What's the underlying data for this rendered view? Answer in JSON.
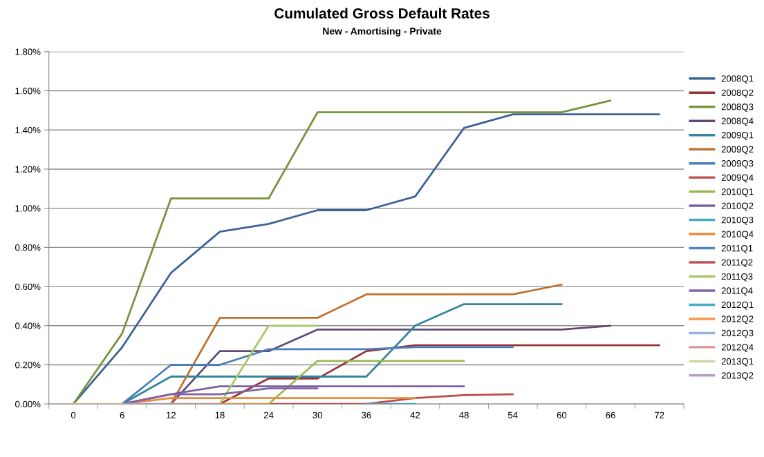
{
  "chart_data": {
    "type": "line",
    "title": "Cumulated Gross Default Rates",
    "subtitle": "New - Amortising - Private",
    "categories": [
      "0",
      "6",
      "12",
      "18",
      "24",
      "30",
      "36",
      "42",
      "48",
      "54",
      "60",
      "66",
      "72"
    ],
    "ylim": [
      0,
      1.8
    ],
    "yticks": [
      {
        "value": 0,
        "label": "0.00%"
      },
      {
        "value": 0.2,
        "label": "0.20%"
      },
      {
        "value": 0.4,
        "label": "0.40%"
      },
      {
        "value": 0.6,
        "label": "0.60%"
      },
      {
        "value": 0.8,
        "label": "0.80%"
      },
      {
        "value": 1.0,
        "label": "1.00%"
      },
      {
        "value": 1.2,
        "label": "1.20%"
      },
      {
        "value": 1.4,
        "label": "1.40%"
      },
      {
        "value": 1.6,
        "label": "1.60%"
      },
      {
        "value": 1.8,
        "label": "1.80%"
      }
    ],
    "grid": "y",
    "legend": "right",
    "series": [
      {
        "name": "2008Q1",
        "color": "#3b6397",
        "values": [
          0,
          0.29,
          0.67,
          0.88,
          0.92,
          0.99,
          0.99,
          1.06,
          1.41,
          1.48,
          1.48,
          1.48,
          1.48
        ]
      },
      {
        "name": "2008Q2",
        "color": "#953735",
        "values": [
          null,
          null,
          null,
          0,
          0.13,
          0.13,
          0.27,
          0.3,
          0.3,
          0.3,
          0.3,
          0.3,
          0.3
        ]
      },
      {
        "name": "2008Q3",
        "color": "#77933c",
        "values": [
          0,
          0.36,
          1.05,
          1.05,
          1.05,
          1.49,
          1.49,
          1.49,
          1.49,
          1.49,
          1.49,
          1.55,
          null
        ]
      },
      {
        "name": "2008Q4",
        "color": "#5f497a",
        "values": [
          null,
          null,
          0,
          0.27,
          0.27,
          0.38,
          0.38,
          0.38,
          0.38,
          0.38,
          0.38,
          0.4,
          null
        ]
      },
      {
        "name": "2009Q1",
        "color": "#31859c",
        "values": [
          null,
          0,
          0.14,
          0.14,
          0.14,
          0.14,
          0.14,
          0.4,
          0.51,
          0.51,
          0.51,
          null,
          null
        ]
      },
      {
        "name": "2009Q2",
        "color": "#c0702f",
        "values": [
          null,
          null,
          0,
          0.44,
          0.44,
          0.44,
          0.56,
          0.56,
          0.56,
          0.56,
          0.61,
          null,
          null
        ]
      },
      {
        "name": "2009Q3",
        "color": "#4a7ebb",
        "values": [
          null,
          0,
          0.2,
          0.2,
          0.28,
          0.28,
          0.28,
          0.29,
          0.29,
          0.29,
          null,
          null,
          null
        ]
      },
      {
        "name": "2009Q4",
        "color": "#be4b48",
        "values": [
          null,
          null,
          null,
          null,
          0,
          0,
          0,
          0.03,
          0.045,
          0.05,
          null,
          null,
          null
        ]
      },
      {
        "name": "2010Q1",
        "color": "#98b954",
        "values": [
          null,
          null,
          null,
          null,
          0,
          0.22,
          0.22,
          0.22,
          0.22,
          null,
          null,
          null,
          null
        ]
      },
      {
        "name": "2010Q2",
        "color": "#7d60a0",
        "values": [
          null,
          0,
          0.05,
          0.09,
          0.09,
          0.09,
          0.09,
          0.09,
          0.09,
          null,
          null,
          null,
          null
        ]
      },
      {
        "name": "2010Q3",
        "color": "#46aac5",
        "values": [
          null,
          null,
          null,
          null,
          null,
          null,
          0,
          0,
          null,
          null,
          null,
          null,
          null
        ]
      },
      {
        "name": "2010Q4",
        "color": "#ea8a3c",
        "values": [
          null,
          0,
          0.03,
          0.03,
          0.03,
          0.03,
          0.03,
          0.03,
          null,
          null,
          null,
          null,
          null
        ]
      },
      {
        "name": "2011Q1",
        "color": "#5485c1",
        "values": [
          null,
          null,
          null,
          null,
          null,
          null,
          null,
          null,
          null,
          null,
          null,
          null,
          null
        ]
      },
      {
        "name": "2011Q2",
        "color": "#c0504d",
        "values": [
          null,
          null,
          null,
          null,
          null,
          null,
          null,
          null,
          null,
          null,
          null,
          null,
          null
        ]
      },
      {
        "name": "2011Q3",
        "color": "#a5c86b",
        "values": [
          null,
          null,
          null,
          0,
          0.4,
          0.4,
          null,
          null,
          null,
          null,
          null,
          null,
          null
        ]
      },
      {
        "name": "2011Q4",
        "color": "#8064a2",
        "values": [
          null,
          0,
          0.05,
          0.05,
          0.08,
          0.08,
          null,
          null,
          null,
          null,
          null,
          null,
          null
        ]
      },
      {
        "name": "2012Q1",
        "color": "#4bacc6",
        "values": [
          null,
          null,
          null,
          null,
          null,
          null,
          null,
          null,
          null,
          null,
          null,
          null,
          null
        ]
      },
      {
        "name": "2012Q2",
        "color": "#f79646",
        "values": [
          null,
          null,
          null,
          0,
          0,
          null,
          null,
          null,
          null,
          null,
          null,
          null,
          null
        ]
      },
      {
        "name": "2012Q3",
        "color": "#95b3d7",
        "values": [
          null,
          null,
          null,
          null,
          null,
          null,
          null,
          null,
          null,
          null,
          null,
          null,
          null
        ]
      },
      {
        "name": "2012Q4",
        "color": "#d99694",
        "values": [
          null,
          null,
          0,
          0,
          null,
          null,
          null,
          null,
          null,
          null,
          null,
          null,
          null
        ]
      },
      {
        "name": "2013Q1",
        "color": "#c3d69b",
        "values": [
          null,
          null,
          null,
          null,
          null,
          null,
          null,
          null,
          null,
          null,
          null,
          null,
          null
        ]
      },
      {
        "name": "2013Q2",
        "color": "#b3a2c7",
        "values": [
          null,
          0,
          0,
          null,
          null,
          null,
          null,
          null,
          null,
          null,
          null,
          null,
          null
        ]
      },
      {
        "color": "#fac090",
        "values": [
          0,
          0,
          null,
          null,
          null,
          null,
          null,
          null,
          null,
          null,
          null,
          null,
          null
        ]
      }
    ]
  }
}
